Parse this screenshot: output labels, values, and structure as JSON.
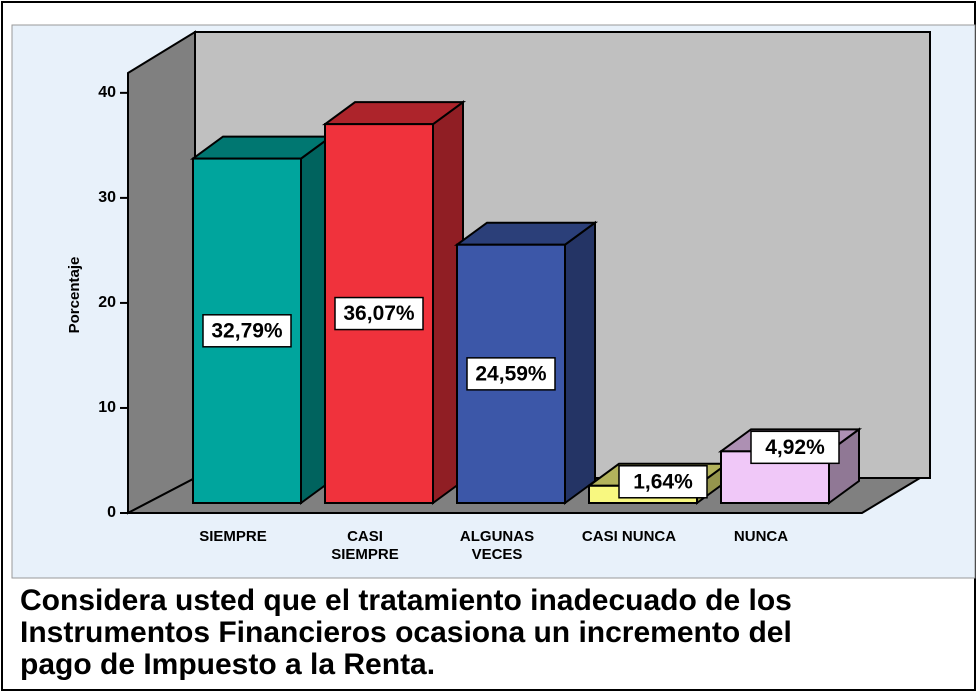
{
  "chart_data": {
    "type": "bar3d",
    "title": [
      "Considera usted que el tratamiento inadecuado de los",
      "Instrumentos Financieros ocasiona un incremento del",
      "pago de Impuesto a la Renta."
    ],
    "y_label": "Porcentaje",
    "categories": [
      "SIEMPRE",
      "CASI\nSIEMPRE",
      "ALGUNAS\nVECES",
      "CASI NUNCA",
      "NUNCA"
    ],
    "values": [
      32.79,
      36.07,
      24.59,
      1.64,
      4.92
    ],
    "value_labels": [
      "32,79%",
      "36,07%",
      "24,59%",
      "1,64%",
      "4,92%"
    ],
    "colors": [
      "#00a59d",
      "#f0323c",
      "#3c57a8",
      "#f8f880",
      "#f0c8f8"
    ],
    "ylim": [
      0,
      41.7
    ],
    "yticks": [
      0,
      10,
      20,
      30,
      40
    ]
  }
}
